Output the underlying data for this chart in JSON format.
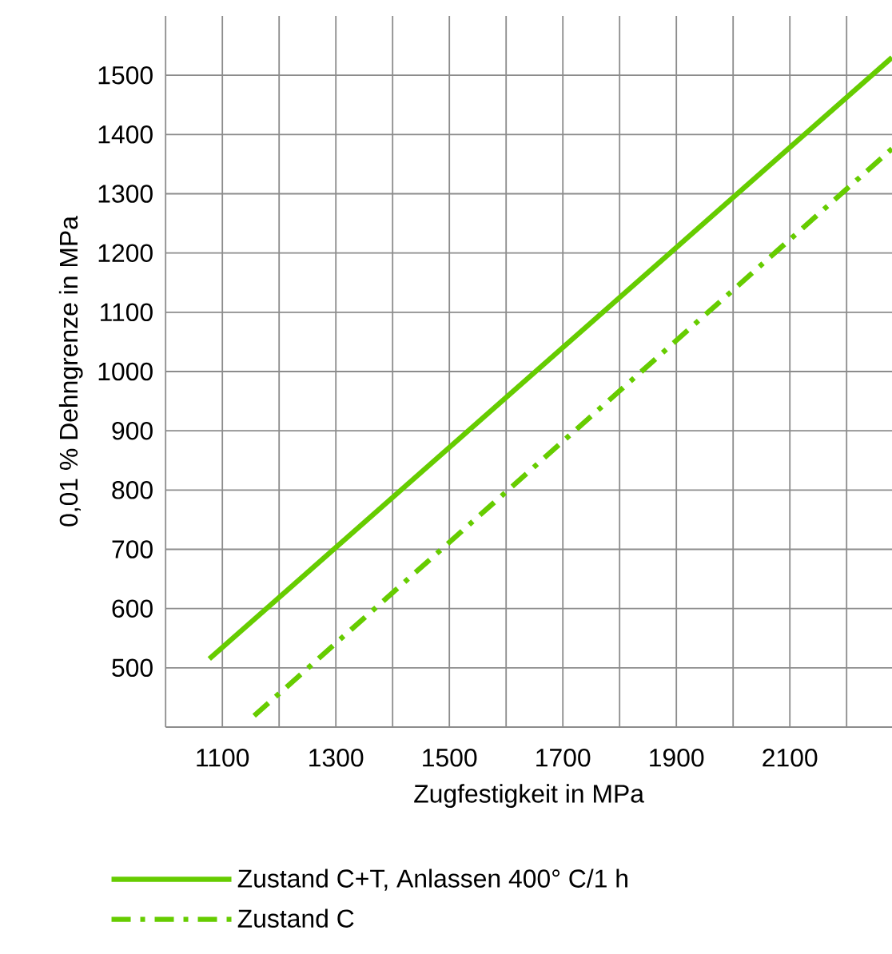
{
  "chart_data": {
    "type": "line",
    "xlabel": "Zugfestigkeit in MPa",
    "ylabel": "0,01 % Dehngrenze in MPa",
    "xlim": [
      1000,
      2280
    ],
    "ylim": [
      400,
      1600
    ],
    "xticks": [
      1100,
      {
        "value": 1200,
        "label": null
      },
      1300,
      {
        "value": 1400,
        "label": null
      },
      1500,
      {
        "value": 1600,
        "label": null
      },
      1700,
      {
        "value": 1800,
        "label": null
      },
      1900,
      {
        "value": 2000,
        "label": null
      },
      2100,
      {
        "value": 2200,
        "label": null
      }
    ],
    "yticks": [
      500,
      600,
      700,
      800,
      900,
      1000,
      1100,
      1200,
      1300,
      1400,
      1500
    ],
    "grid": true,
    "legend": "bottom",
    "series": [
      {
        "name": "Zustand C+T, Anlassen 400° C/1 h",
        "color": "#66cc00",
        "line_style": "solid",
        "x": [
          1077,
          2280
        ],
        "values": [
          515,
          1530
        ]
      },
      {
        "name": "Zustand C",
        "color": "#66cc00",
        "line_style": "dashdotted",
        "x": [
          1156,
          2280
        ],
        "values": [
          419,
          1376
        ]
      }
    ]
  }
}
